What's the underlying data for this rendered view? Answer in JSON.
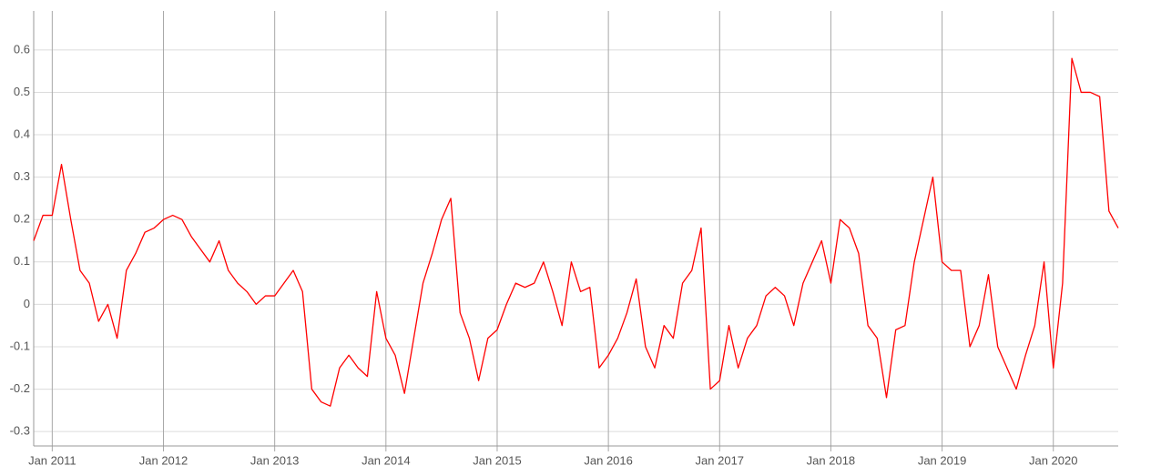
{
  "chart_data": {
    "type": "line",
    "color": "#ff0000",
    "x": [
      "2010-11",
      "2010-12",
      "2011-01",
      "2011-02",
      "2011-03",
      "2011-04",
      "2011-05",
      "2011-06",
      "2011-07",
      "2011-08",
      "2011-09",
      "2011-10",
      "2011-11",
      "2011-12",
      "2012-01",
      "2012-02",
      "2012-03",
      "2012-04",
      "2012-05",
      "2012-06",
      "2012-07",
      "2012-08",
      "2012-09",
      "2012-10",
      "2012-11",
      "2012-12",
      "2013-01",
      "2013-02",
      "2013-03",
      "2013-04",
      "2013-05",
      "2013-06",
      "2013-07",
      "2013-08",
      "2013-09",
      "2013-10",
      "2013-11",
      "2013-12",
      "2014-01",
      "2014-02",
      "2014-03",
      "2014-04",
      "2014-05",
      "2014-06",
      "2014-07",
      "2014-08",
      "2014-09",
      "2014-10",
      "2014-11",
      "2014-12",
      "2015-01",
      "2015-02",
      "2015-03",
      "2015-04",
      "2015-05",
      "2015-06",
      "2015-07",
      "2015-08",
      "2015-09",
      "2015-10",
      "2015-11",
      "2015-12",
      "2016-01",
      "2016-02",
      "2016-03",
      "2016-04",
      "2016-05",
      "2016-06",
      "2016-07",
      "2016-08",
      "2016-09",
      "2016-10",
      "2016-11",
      "2016-12",
      "2017-01",
      "2017-02",
      "2017-03",
      "2017-04",
      "2017-05",
      "2017-06",
      "2017-07",
      "2017-08",
      "2017-09",
      "2017-10",
      "2017-11",
      "2017-12",
      "2018-01",
      "2018-02",
      "2018-03",
      "2018-04",
      "2018-05",
      "2018-06",
      "2018-07",
      "2018-08",
      "2018-09",
      "2018-10",
      "2018-11",
      "2018-12",
      "2019-01",
      "2019-02",
      "2019-03",
      "2019-04",
      "2019-05",
      "2019-06",
      "2019-07",
      "2019-08",
      "2019-09",
      "2019-10",
      "2019-11",
      "2019-12",
      "2020-01",
      "2020-02",
      "2020-03",
      "2020-04",
      "2020-05",
      "2020-06",
      "2020-07",
      "2020-08"
    ],
    "values": [
      0.15,
      0.21,
      0.21,
      0.33,
      0.2,
      0.08,
      0.05,
      -0.04,
      0.0,
      -0.08,
      0.08,
      0.12,
      0.17,
      0.18,
      0.2,
      0.21,
      0.2,
      0.16,
      0.13,
      0.1,
      0.15,
      0.08,
      0.05,
      0.03,
      0.0,
      0.02,
      0.02,
      0.05,
      0.08,
      0.03,
      -0.2,
      -0.23,
      -0.24,
      -0.15,
      -0.12,
      -0.15,
      -0.17,
      0.03,
      -0.08,
      -0.12,
      -0.21,
      -0.08,
      0.05,
      0.12,
      0.2,
      0.25,
      -0.02,
      -0.08,
      -0.18,
      -0.08,
      -0.06,
      0.0,
      0.05,
      0.04,
      0.05,
      0.1,
      0.03,
      -0.05,
      0.1,
      0.03,
      0.04,
      -0.15,
      -0.12,
      -0.08,
      -0.02,
      0.06,
      -0.1,
      -0.15,
      -0.05,
      -0.08,
      0.05,
      0.08,
      0.18,
      -0.2,
      -0.18,
      -0.05,
      -0.15,
      -0.08,
      -0.05,
      0.02,
      0.04,
      0.02,
      -0.05,
      0.05,
      0.1,
      0.15,
      0.05,
      0.2,
      0.18,
      0.12,
      -0.05,
      -0.08,
      -0.22,
      -0.06,
      -0.05,
      0.1,
      0.2,
      0.3,
      0.1,
      0.08,
      0.08,
      -0.1,
      -0.05,
      0.07,
      -0.1,
      -0.15,
      -0.2,
      -0.12,
      -0.05,
      0.1,
      -0.15,
      0.05,
      0.58,
      0.5,
      0.5,
      0.49,
      0.22,
      0.18
    ],
    "xlim": [
      "2010-11",
      "2020-08"
    ],
    "xticks": [
      {
        "value": "2011-01",
        "label": "Jan 2011"
      },
      {
        "value": "2012-01",
        "label": "Jan 2012"
      },
      {
        "value": "2013-01",
        "label": "Jan 2013"
      },
      {
        "value": "2014-01",
        "label": "Jan 2014"
      },
      {
        "value": "2015-01",
        "label": "Jan 2015"
      },
      {
        "value": "2016-01",
        "label": "Jan 2016"
      },
      {
        "value": "2017-01",
        "label": "Jan 2017"
      },
      {
        "value": "2018-01",
        "label": "Jan 2018"
      },
      {
        "value": "2019-01",
        "label": "Jan 2019"
      },
      {
        "value": "2020-01",
        "label": "Jan 2020"
      }
    ],
    "ylim": [
      -0.334,
      0.692
    ],
    "yticks": [
      -0.3,
      -0.2,
      -0.1,
      0,
      0.1,
      0.2,
      0.3,
      0.4,
      0.5,
      0.6
    ],
    "grid": true
  }
}
